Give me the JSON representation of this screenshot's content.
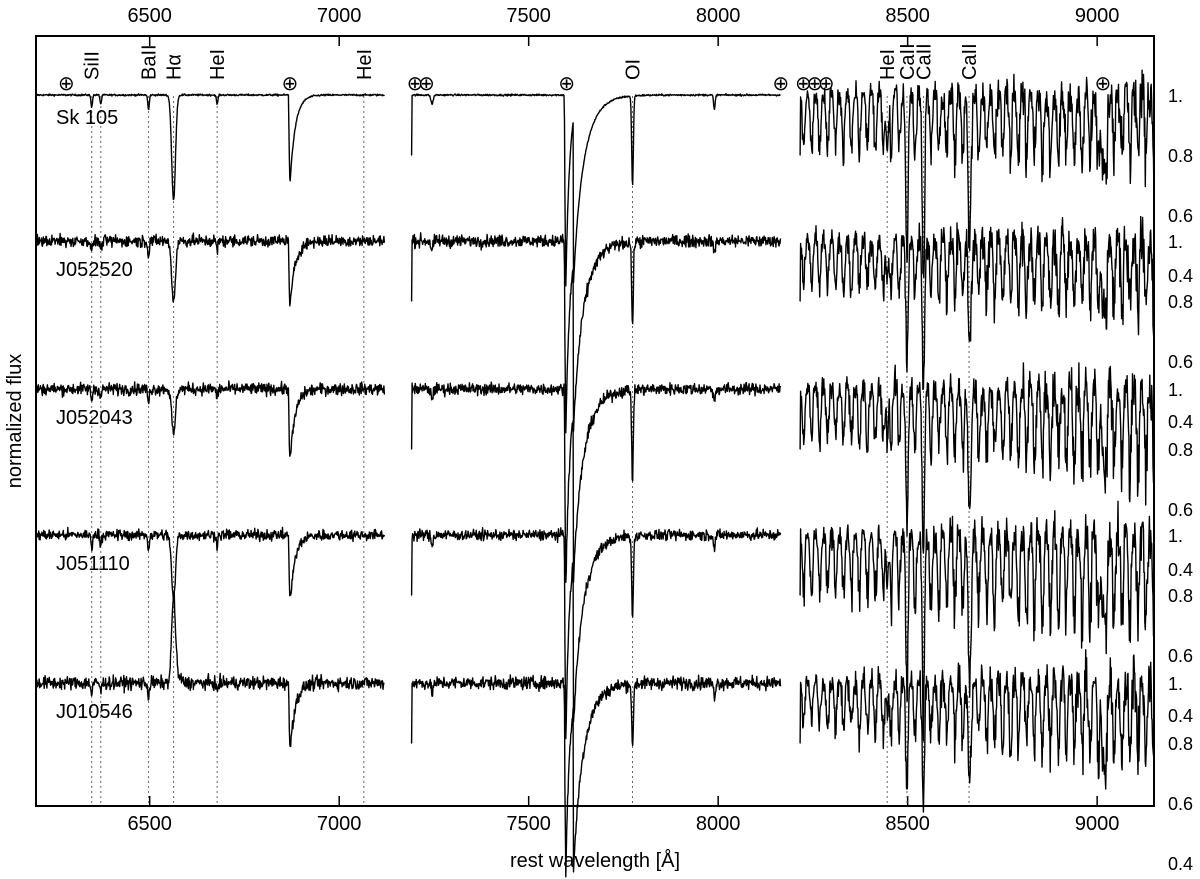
{
  "chart_data": {
    "type": "line",
    "title": "",
    "xlabel": "rest wavelength [Å]",
    "ylabel": "normalized flux",
    "xlim": [
      6200,
      9150
    ],
    "x_ticks": [
      6500,
      7000,
      7500,
      8000,
      8500,
      9000
    ],
    "flux_ticks": [
      "1.",
      "0.8",
      "0.6",
      "0.4"
    ],
    "flux_values": [
      1.0,
      0.8,
      0.6,
      0.4
    ],
    "flux_unit_px": 300,
    "spectral_segments": [
      [
        6200,
        7120
      ],
      [
        7190,
        8165
      ],
      [
        8215,
        9150
      ]
    ],
    "telluric_marker": "⊕",
    "telluric_wavelengths": [
      6280,
      6870,
      7200,
      7230,
      7600,
      8165,
      8225,
      8255,
      8285,
      9015
    ],
    "line_markers": [
      {
        "label": "SiII",
        "wavelength": 6347
      },
      {
        "label": "SiII",
        "wavelength": 6371,
        "text": false
      },
      {
        "label": "BaII",
        "wavelength": 6497
      },
      {
        "label": "Hα",
        "wavelength": 6563
      },
      {
        "label": "HeI",
        "wavelength": 6678
      },
      {
        "label": "HeI",
        "wavelength": 7065
      },
      {
        "label": "OI",
        "wavelength": 7774
      },
      {
        "label": "HeI",
        "wavelength": 8446
      },
      {
        "label": "CaII",
        "wavelength": 8498
      },
      {
        "label": "CaII",
        "wavelength": 8542
      },
      {
        "label": "CaII",
        "wavelength": 8662
      }
    ],
    "series": [
      {
        "name": "Sk 105",
        "noise": 0.003,
        "halpha": -0.35,
        "halpha_w": 5,
        "band_a_depth": 0.95,
        "b_depth": 0.4,
        "o_depth": 0.3,
        "cat_scale": 0.9,
        "paschen_amp": 0.22,
        "paschen_far": 0.1,
        "emission": 0
      },
      {
        "name": "J052520",
        "noise": 0.02,
        "halpha": -0.2,
        "halpha_w": 5,
        "band_a_depth": 0.95,
        "b_depth": 0.3,
        "o_depth": 0.28,
        "cat_scale": 0.55,
        "paschen_amp": 0.18,
        "paschen_far": 0.22,
        "emission": 0
      },
      {
        "name": "J052043",
        "noise": 0.02,
        "halpha": -0.15,
        "halpha_w": 5,
        "band_a_depth": 0.98,
        "b_depth": 0.33,
        "o_depth": 0.3,
        "cat_scale": 0.65,
        "paschen_amp": 0.2,
        "paschen_far": 0.25,
        "emission": 0
      },
      {
        "name": "J051110",
        "noise": 0.018,
        "halpha": -0.22,
        "halpha_w": 5,
        "band_a_depth": 1.0,
        "b_depth": 0.3,
        "o_depth": 0.28,
        "cat_scale": 0.7,
        "paschen_amp": 0.22,
        "paschen_far": 0.3,
        "emission": 0
      },
      {
        "name": "J010546",
        "noise": 0.022,
        "halpha": 0.28,
        "halpha_w": 5,
        "band_a_depth": 0.95,
        "b_depth": 0.3,
        "o_depth": 0.22,
        "cat_scale": 0.45,
        "paschen_amp": 0.18,
        "paschen_far": 0.2,
        "emission": 1
      }
    ]
  }
}
